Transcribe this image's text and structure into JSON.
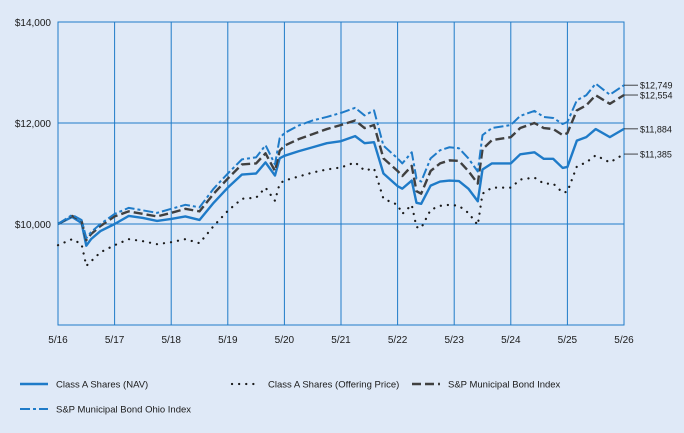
{
  "chart_data": {
    "type": "line",
    "xlabel": "",
    "ylabel": "",
    "x_ticks": [
      "5/16",
      "5/17",
      "5/18",
      "5/19",
      "5/20",
      "5/21",
      "5/22",
      "5/23",
      "5/24",
      "5/25",
      "5/26"
    ],
    "y_ticks": [
      "$10,000",
      "$12,000",
      "$14,000"
    ],
    "ylim": [
      8000,
      14000
    ],
    "grid": true,
    "legend_position": "bottom",
    "colors": {
      "nav": "#1f7bc8",
      "offering": "#1a1a1a",
      "sp_muni": "#404040",
      "sp_ohio": "#1f7bc8",
      "grid": "#1f7bc8",
      "background": "#dfe9f7"
    },
    "series": [
      {
        "name": "Class A Shares (NAV)",
        "style": "solid",
        "end_label": "$11,884",
        "points": [
          [
            "5/16",
            10000
          ],
          [
            "8/16",
            10140
          ],
          [
            "10/16",
            10020
          ],
          [
            "11/16",
            9570
          ],
          [
            "12/16",
            9700
          ],
          [
            "2/17",
            9860
          ],
          [
            "5/17",
            10000
          ],
          [
            "8/17",
            10160
          ],
          [
            "11/17",
            10120
          ],
          [
            "2/18",
            10060
          ],
          [
            "5/18",
            10100
          ],
          [
            "8/18",
            10150
          ],
          [
            "11/18",
            10080
          ],
          [
            "2/19",
            10420
          ],
          [
            "5/19",
            10720
          ],
          [
            "8/19",
            10980
          ],
          [
            "11/19",
            11000
          ],
          [
            "1/20",
            11220
          ],
          [
            "3/20",
            10960
          ],
          [
            "4/20",
            11300
          ],
          [
            "5/20",
            11350
          ],
          [
            "8/20",
            11440
          ],
          [
            "11/20",
            11520
          ],
          [
            "2/21",
            11600
          ],
          [
            "5/21",
            11640
          ],
          [
            "8/21",
            11740
          ],
          [
            "10/21",
            11600
          ],
          [
            "12/21",
            11620
          ],
          [
            "2/22",
            11000
          ],
          [
            "5/22",
            10750
          ],
          [
            "6/22",
            10700
          ],
          [
            "8/22",
            10860
          ],
          [
            "9/22",
            10420
          ],
          [
            "10/22",
            10400
          ],
          [
            "12/22",
            10760
          ],
          [
            "2/23",
            10840
          ],
          [
            "4/23",
            10860
          ],
          [
            "6/23",
            10850
          ],
          [
            "8/23",
            10700
          ],
          [
            "10/23",
            10450
          ],
          [
            "11/23",
            11080
          ],
          [
            "1/24",
            11200
          ],
          [
            "5/24",
            11200
          ],
          [
            "7/24",
            11380
          ],
          [
            "10/24",
            11420
          ],
          [
            "12/24",
            11290
          ],
          [
            "2/25",
            11290
          ],
          [
            "4/25",
            11110
          ],
          [
            "5/25",
            11130
          ],
          [
            "7/25",
            11650
          ],
          [
            "9/25",
            11720
          ],
          [
            "11/25",
            11880
          ],
          [
            "2/26",
            11720
          ],
          [
            "5/26",
            11884
          ]
        ]
      },
      {
        "name": "Class A Shares (Offering Price)",
        "style": "dotted",
        "end_label": "$11,385",
        "points": [
          [
            "5/16",
            9580
          ],
          [
            "8/16",
            9700
          ],
          [
            "10/16",
            9600
          ],
          [
            "11/16",
            9170
          ],
          [
            "12/16",
            9260
          ],
          [
            "2/17",
            9440
          ],
          [
            "5/17",
            9580
          ],
          [
            "8/17",
            9700
          ],
          [
            "11/17",
            9660
          ],
          [
            "2/18",
            9600
          ],
          [
            "5/18",
            9640
          ],
          [
            "8/18",
            9700
          ],
          [
            "11/18",
            9620
          ],
          [
            "2/19",
            9960
          ],
          [
            "5/19",
            10260
          ],
          [
            "8/19",
            10500
          ],
          [
            "11/19",
            10520
          ],
          [
            "1/20",
            10720
          ],
          [
            "3/20",
            10460
          ],
          [
            "4/20",
            10800
          ],
          [
            "5/20",
            10860
          ],
          [
            "8/20",
            10940
          ],
          [
            "11/20",
            11020
          ],
          [
            "2/21",
            11080
          ],
          [
            "5/21",
            11120
          ],
          [
            "8/21",
            11220
          ],
          [
            "10/21",
            11060
          ],
          [
            "12/21",
            11100
          ],
          [
            "2/22",
            10500
          ],
          [
            "5/22",
            10380
          ],
          [
            "6/22",
            10200
          ],
          [
            "8/22",
            10380
          ],
          [
            "9/22",
            9940
          ],
          [
            "10/22",
            9920
          ],
          [
            "12/22",
            10280
          ],
          [
            "2/23",
            10360
          ],
          [
            "4/23",
            10380
          ],
          [
            "6/23",
            10360
          ],
          [
            "8/23",
            10220
          ],
          [
            "10/23",
            9980
          ],
          [
            "11/23",
            10600
          ],
          [
            "1/24",
            10720
          ],
          [
            "5/24",
            10720
          ],
          [
            "7/24",
            10880
          ],
          [
            "10/24",
            10920
          ],
          [
            "12/24",
            10800
          ],
          [
            "2/25",
            10800
          ],
          [
            "4/25",
            10620
          ],
          [
            "5/25",
            10640
          ],
          [
            "7/25",
            11140
          ],
          [
            "9/25",
            11220
          ],
          [
            "11/25",
            11360
          ],
          [
            "2/26",
            11220
          ],
          [
            "5/26",
            11385
          ]
        ]
      },
      {
        "name": "S&P Municipal Bond Index",
        "style": "dashed",
        "end_label": "$12,554",
        "points": [
          [
            "5/16",
            10000
          ],
          [
            "8/16",
            10160
          ],
          [
            "10/16",
            10060
          ],
          [
            "11/16",
            9680
          ],
          [
            "12/16",
            9800
          ],
          [
            "2/17",
            9960
          ],
          [
            "5/17",
            10150
          ],
          [
            "8/17",
            10250
          ],
          [
            "11/17",
            10200
          ],
          [
            "2/18",
            10150
          ],
          [
            "5/18",
            10220
          ],
          [
            "8/18",
            10300
          ],
          [
            "11/18",
            10250
          ],
          [
            "2/19",
            10600
          ],
          [
            "5/19",
            10900
          ],
          [
            "8/19",
            11180
          ],
          [
            "11/19",
            11200
          ],
          [
            "1/20",
            11400
          ],
          [
            "3/20",
            11050
          ],
          [
            "4/20",
            11450
          ],
          [
            "5/20",
            11550
          ],
          [
            "8/20",
            11680
          ],
          [
            "11/20",
            11780
          ],
          [
            "2/21",
            11880
          ],
          [
            "5/21",
            11960
          ],
          [
            "8/21",
            12050
          ],
          [
            "10/21",
            11900
          ],
          [
            "12/21",
            11960
          ],
          [
            "2/22",
            11300
          ],
          [
            "5/22",
            11050
          ],
          [
            "6/22",
            10950
          ],
          [
            "8/22",
            11150
          ],
          [
            "9/22",
            10650
          ],
          [
            "10/22",
            10600
          ],
          [
            "12/22",
            11050
          ],
          [
            "2/23",
            11200
          ],
          [
            "4/23",
            11260
          ],
          [
            "6/23",
            11250
          ],
          [
            "8/23",
            11050
          ],
          [
            "10/23",
            10800
          ],
          [
            "11/23",
            11480
          ],
          [
            "1/24",
            11660
          ],
          [
            "5/24",
            11720
          ],
          [
            "7/24",
            11900
          ],
          [
            "10/24",
            12000
          ],
          [
            "12/24",
            11900
          ],
          [
            "2/25",
            11880
          ],
          [
            "4/25",
            11760
          ],
          [
            "5/25",
            11800
          ],
          [
            "7/25",
            12250
          ],
          [
            "9/25",
            12350
          ],
          [
            "11/25",
            12550
          ],
          [
            "2/26",
            12380
          ],
          [
            "5/26",
            12554
          ]
        ]
      },
      {
        "name": "S&P Municipal Bond Ohio Index",
        "style": "dashdot",
        "end_label": "$12,749",
        "points": [
          [
            "5/16",
            10000
          ],
          [
            "8/16",
            10180
          ],
          [
            "10/16",
            10080
          ],
          [
            "11/16",
            9720
          ],
          [
            "12/16",
            9840
          ],
          [
            "2/17",
            10000
          ],
          [
            "5/17",
            10200
          ],
          [
            "8/17",
            10320
          ],
          [
            "11/17",
            10270
          ],
          [
            "2/18",
            10220
          ],
          [
            "5/18",
            10300
          ],
          [
            "8/18",
            10380
          ],
          [
            "11/18",
            10330
          ],
          [
            "2/19",
            10700
          ],
          [
            "5/19",
            11000
          ],
          [
            "8/19",
            11280
          ],
          [
            "11/19",
            11320
          ],
          [
            "1/20",
            11560
          ],
          [
            "3/20",
            11180
          ],
          [
            "4/20",
            11700
          ],
          [
            "5/20",
            11800
          ],
          [
            "8/20",
            11950
          ],
          [
            "11/20",
            12050
          ],
          [
            "2/21",
            12120
          ],
          [
            "5/21",
            12200
          ],
          [
            "8/21",
            12300
          ],
          [
            "10/21",
            12150
          ],
          [
            "12/21",
            12250
          ],
          [
            "2/22",
            11550
          ],
          [
            "5/22",
            11300
          ],
          [
            "6/22",
            11200
          ],
          [
            "8/22",
            11420
          ],
          [
            "9/22",
            10900
          ],
          [
            "10/22",
            10840
          ],
          [
            "12/22",
            11300
          ],
          [
            "2/23",
            11460
          ],
          [
            "4/23",
            11520
          ],
          [
            "6/23",
            11500
          ],
          [
            "8/23",
            11300
          ],
          [
            "10/23",
            11040
          ],
          [
            "11/23",
            11760
          ],
          [
            "1/24",
            11900
          ],
          [
            "5/24",
            11960
          ],
          [
            "7/24",
            12140
          ],
          [
            "10/24",
            12240
          ],
          [
            "12/24",
            12120
          ],
          [
            "2/25",
            12100
          ],
          [
            "4/25",
            11980
          ],
          [
            "5/25",
            12020
          ],
          [
            "7/25",
            12450
          ],
          [
            "9/25",
            12550
          ],
          [
            "11/25",
            12780
          ],
          [
            "2/26",
            12560
          ],
          [
            "5/26",
            12749
          ]
        ]
      }
    ]
  }
}
